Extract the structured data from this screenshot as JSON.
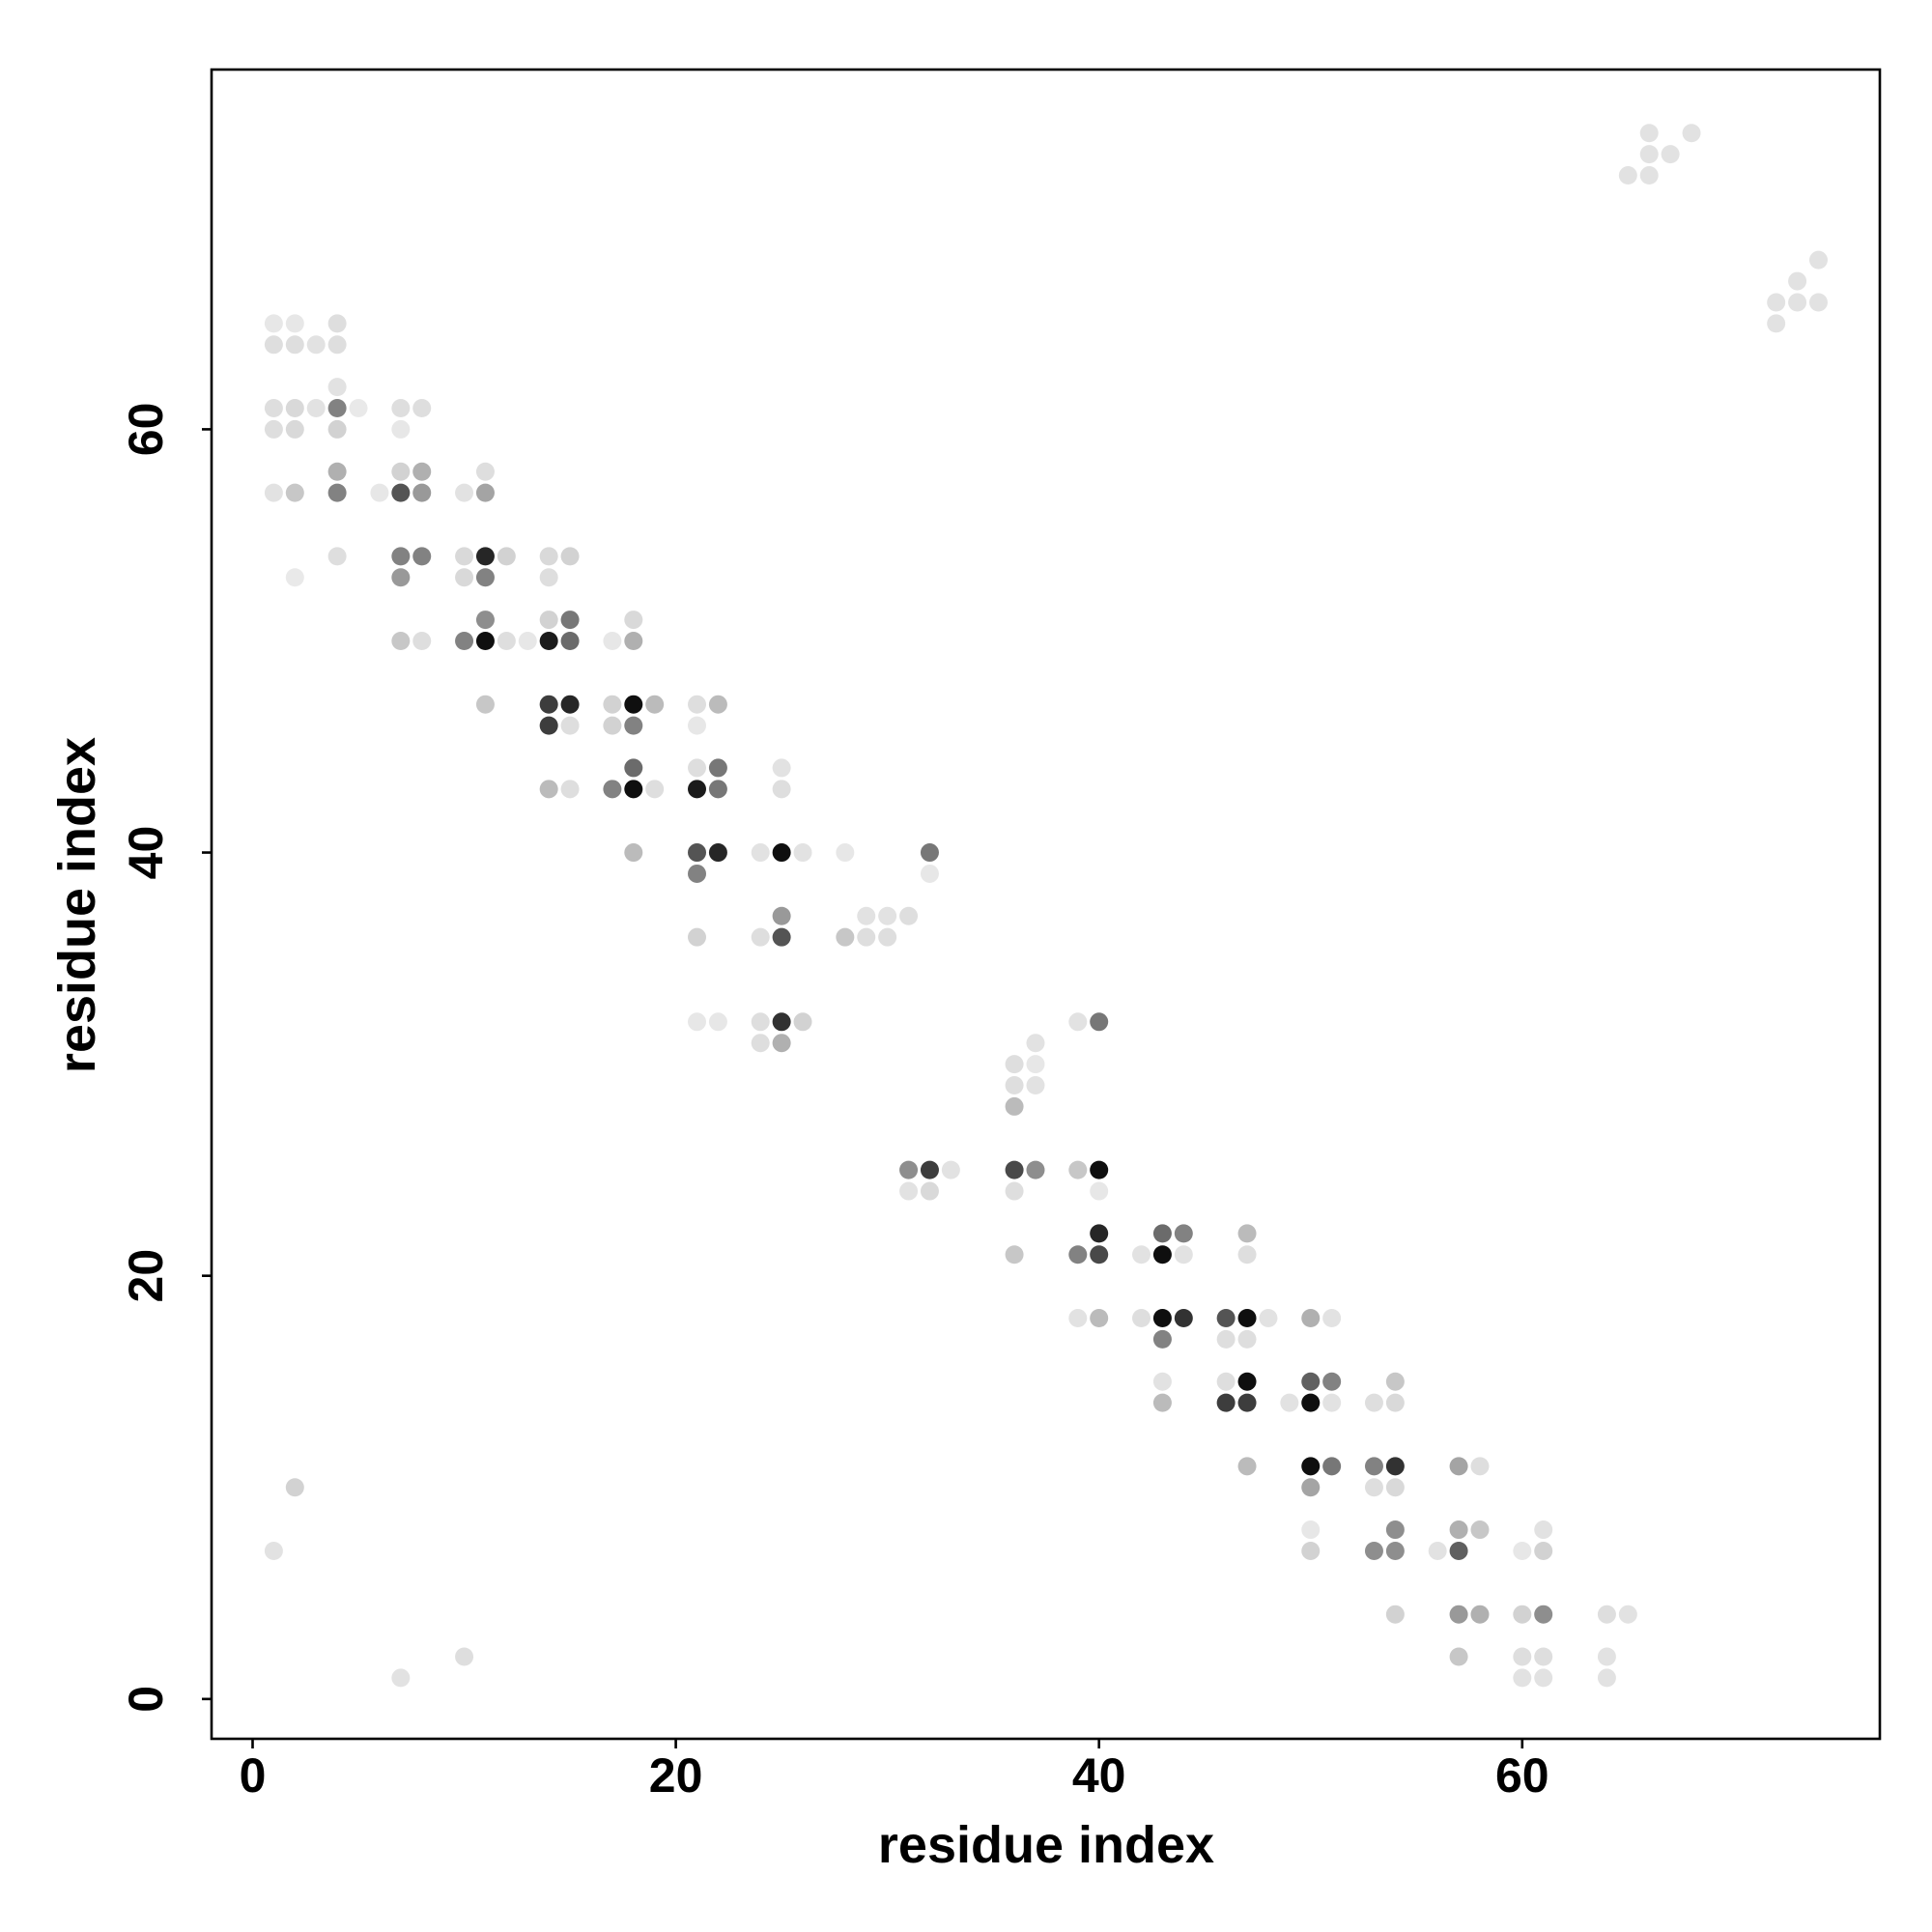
{
  "chart_data": {
    "type": "scatter",
    "x_label": "residue index",
    "y_label": "residue index",
    "xlim": [
      -1.94,
      76.9
    ],
    "ylim": [
      -1.88,
      77.0
    ],
    "xticks": [
      0,
      20,
      40,
      60
    ],
    "yticks": [
      0,
      20,
      40,
      60
    ],
    "color": "#000000",
    "x": [
      68,
      66,
      66,
      67,
      65,
      66,
      74,
      73,
      72,
      73,
      74,
      72,
      1,
      2,
      4,
      1,
      2,
      3,
      4,
      4,
      1,
      2,
      3,
      4,
      5,
      7,
      8,
      1,
      2,
      4,
      7,
      4,
      7,
      8,
      11,
      1,
      2,
      4,
      6,
      7,
      8,
      10,
      11,
      4,
      7,
      8,
      10,
      11,
      12,
      14,
      15,
      2,
      7,
      10,
      11,
      14,
      11,
      14,
      15,
      18,
      7,
      8,
      10,
      11,
      12,
      13,
      14,
      15,
      17,
      18,
      11,
      14,
      15,
      17,
      18,
      19,
      21,
      22,
      14,
      15,
      17,
      18,
      21,
      18,
      21,
      22,
      25,
      14,
      15,
      17,
      18,
      19,
      21,
      22,
      25,
      18,
      21,
      22,
      24,
      25,
      26,
      28,
      32,
      21,
      32,
      25,
      29,
      30,
      31,
      21,
      24,
      25,
      28,
      29,
      30,
      21,
      22,
      24,
      25,
      26,
      39,
      40,
      24,
      25,
      37,
      36,
      37,
      36,
      37,
      36,
      31,
      32,
      33,
      36,
      37,
      39,
      40,
      31,
      32,
      36,
      40,
      40,
      43,
      44,
      47,
      36,
      39,
      40,
      42,
      43,
      44,
      47,
      39,
      40,
      42,
      43,
      44,
      46,
      47,
      48,
      50,
      51,
      43,
      46,
      47,
      43,
      46,
      47,
      50,
      51,
      54,
      43,
      46,
      47,
      49,
      50,
      51,
      53,
      54,
      47,
      50,
      51,
      53,
      54,
      57,
      58,
      2,
      50,
      53,
      54,
      50,
      54,
      57,
      58,
      61,
      1,
      50,
      53,
      54,
      56,
      57,
      60,
      61,
      54,
      57,
      58,
      60,
      61,
      64,
      65,
      10,
      57,
      60,
      61,
      64,
      7,
      60,
      61,
      64
    ],
    "y": [
      74,
      74,
      73,
      73,
      72,
      72,
      68,
      67,
      66,
      66,
      66,
      65,
      65,
      65,
      65,
      64,
      64,
      64,
      64,
      62,
      61,
      61,
      61,
      61,
      61,
      61,
      61,
      60,
      60,
      60,
      60,
      58,
      58,
      58,
      58,
      57,
      57,
      57,
      57,
      57,
      57,
      57,
      57,
      54,
      54,
      54,
      54,
      54,
      54,
      54,
      54,
      53,
      53,
      53,
      53,
      53,
      51,
      51,
      51,
      51,
      50,
      50,
      50,
      50,
      50,
      50,
      50,
      50,
      50,
      50,
      47,
      47,
      47,
      47,
      47,
      47,
      47,
      47,
      46,
      46,
      46,
      46,
      46,
      44,
      44,
      44,
      44,
      43,
      43,
      43,
      43,
      43,
      43,
      43,
      43,
      40,
      40,
      40,
      40,
      40,
      40,
      40,
      40,
      39,
      39,
      37,
      37,
      37,
      37,
      36,
      36,
      36,
      36,
      36,
      36,
      32,
      32,
      32,
      32,
      32,
      32,
      32,
      31,
      31,
      31,
      30,
      30,
      29,
      29,
      28,
      25,
      25,
      25,
      25,
      25,
      25,
      25,
      24,
      24,
      24,
      24,
      22,
      22,
      22,
      22,
      21,
      21,
      21,
      21,
      21,
      21,
      21,
      18,
      18,
      18,
      18,
      18,
      18,
      18,
      18,
      18,
      18,
      17,
      17,
      17,
      15,
      15,
      15,
      15,
      15,
      15,
      14,
      14,
      14,
      14,
      14,
      14,
      14,
      14,
      11,
      11,
      11,
      11,
      11,
      11,
      11,
      10,
      10,
      10,
      10,
      8,
      8,
      8,
      8,
      8,
      7,
      7,
      7,
      7,
      7,
      7,
      7,
      7,
      4,
      4,
      4,
      4,
      4,
      4,
      4,
      2,
      2,
      2,
      2,
      2,
      1,
      1,
      1,
      1
    ],
    "values": [
      0.08,
      0.08,
      0.08,
      0.08,
      0.08,
      0.08,
      0.08,
      0.08,
      0.08,
      0.08,
      0.08,
      0.08,
      0.06,
      0.06,
      0.1,
      0.1,
      0.1,
      0.08,
      0.1,
      0.08,
      0.1,
      0.12,
      0.08,
      0.5,
      0.05,
      0.1,
      0.1,
      0.1,
      0.12,
      0.15,
      0.06,
      0.3,
      0.15,
      0.3,
      0.1,
      0.08,
      0.2,
      0.5,
      0.06,
      0.7,
      0.4,
      0.08,
      0.35,
      0.1,
      0.5,
      0.5,
      0.12,
      0.9,
      0.15,
      0.12,
      0.15,
      0.05,
      0.4,
      0.12,
      0.5,
      0.1,
      0.45,
      0.15,
      0.55,
      0.12,
      0.2,
      0.1,
      0.5,
      1,
      0.1,
      0.06,
      0.95,
      0.6,
      0.06,
      0.3,
      0.2,
      0.8,
      0.9,
      0.15,
      1,
      0.25,
      0.1,
      0.25,
      0.8,
      0.1,
      0.15,
      0.5,
      0.06,
      0.6,
      0.1,
      0.55,
      0.08,
      0.25,
      0.1,
      0.5,
      1,
      0.1,
      0.95,
      0.55,
      0.1,
      0.25,
      0.7,
      0.9,
      0.08,
      1,
      0.08,
      0.06,
      0.55,
      0.5,
      0.06,
      0.4,
      0.08,
      0.08,
      0.1,
      0.15,
      0.1,
      0.7,
      0.2,
      0.1,
      0.1,
      0.06,
      0.06,
      0.1,
      0.85,
      0.15,
      0.08,
      0.55,
      0.1,
      0.3,
      0.08,
      0.1,
      0.06,
      0.1,
      0.08,
      0.25,
      0.45,
      0.8,
      0.08,
      0.75,
      0.45,
      0.2,
      1,
      0.08,
      0.12,
      0.1,
      0.06,
      0.9,
      0.6,
      0.5,
      0.25,
      0.2,
      0.5,
      0.75,
      0.08,
      1,
      0.08,
      0.1,
      0.08,
      0.25,
      0.1,
      1,
      0.85,
      0.7,
      1,
      0.08,
      0.3,
      0.08,
      0.5,
      0.1,
      0.1,
      0.08,
      0.1,
      1,
      0.65,
      0.5,
      0.2,
      0.25,
      0.8,
      0.8,
      0.08,
      1,
      0.08,
      0.1,
      0.12,
      0.25,
      1,
      0.55,
      0.5,
      0.85,
      0.35,
      0.1,
      0.15,
      0.35,
      0.1,
      0.12,
      0.06,
      0.45,
      0.3,
      0.2,
      0.08,
      0.08,
      0.15,
      0.45,
      0.45,
      0.08,
      0.65,
      0.06,
      0.15,
      0.15,
      0.4,
      0.3,
      0.15,
      0.45,
      0.1,
      0.08,
      0.1,
      0.2,
      0.1,
      0.1,
      0.08,
      0.08,
      0.08,
      0.08,
      0.08
    ]
  }
}
